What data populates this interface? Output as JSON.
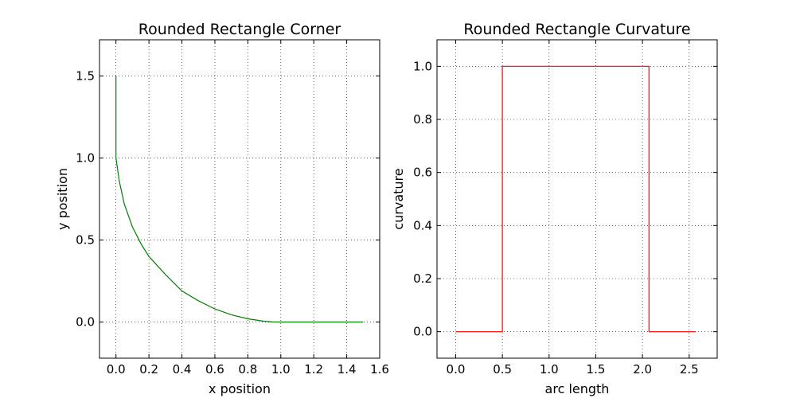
{
  "chart_data": [
    {
      "type": "line",
      "title": "Rounded Rectangle Corner",
      "xlabel": "x position",
      "ylabel": "y position",
      "xlim": [
        -0.1,
        1.6
      ],
      "ylim": [
        -0.22,
        1.72
      ],
      "xticks": [
        0.0,
        0.2,
        0.4,
        0.6,
        0.8,
        1.0,
        1.2,
        1.4,
        1.6
      ],
      "xtick_labels": [
        "0.0",
        "0.2",
        "0.4",
        "0.6",
        "0.8",
        "1.0",
        "1.2",
        "1.4",
        "1.6"
      ],
      "yticks": [
        0.0,
        0.5,
        1.0,
        1.5
      ],
      "ytick_labels": [
        "0.0",
        "0.5",
        "1.0",
        "1.5"
      ],
      "grid": true,
      "series": [
        {
          "color": "#008000",
          "x": [
            0.0,
            0.0,
            0.0,
            0.02,
            0.05,
            0.1,
            0.15,
            0.2,
            0.3,
            0.4,
            0.5,
            0.6,
            0.7,
            0.8,
            0.9,
            0.95,
            1.0,
            1.2,
            1.5
          ],
          "y": [
            1.5,
            1.2,
            1.0,
            0.86,
            0.72,
            0.58,
            0.48,
            0.4,
            0.29,
            0.19,
            0.13,
            0.08,
            0.045,
            0.02,
            0.005,
            0.001,
            0.0,
            0.0,
            0.0
          ]
        }
      ]
    },
    {
      "type": "line",
      "title": "Rounded Rectangle Curvature",
      "xlabel": "arc length",
      "ylabel": "curvature",
      "xlim": [
        -0.2,
        2.8
      ],
      "ylim": [
        -0.1,
        1.1
      ],
      "xticks": [
        0.0,
        0.5,
        1.0,
        1.5,
        2.0,
        2.5
      ],
      "xtick_labels": [
        "0.0",
        "0.5",
        "1.0",
        "1.5",
        "2.0",
        "2.5"
      ],
      "yticks": [
        0.0,
        0.2,
        0.4,
        0.6,
        0.8,
        1.0
      ],
      "ytick_labels": [
        "0.0",
        "0.2",
        "0.4",
        "0.6",
        "0.8",
        "1.0"
      ],
      "grid": true,
      "series": [
        {
          "color": "#ff0000",
          "x": [
            0.0,
            0.5,
            0.5,
            2.07,
            2.07,
            2.57
          ],
          "y": [
            0.0,
            0.0,
            1.0,
            1.0,
            0.0,
            0.0
          ]
        }
      ]
    }
  ]
}
